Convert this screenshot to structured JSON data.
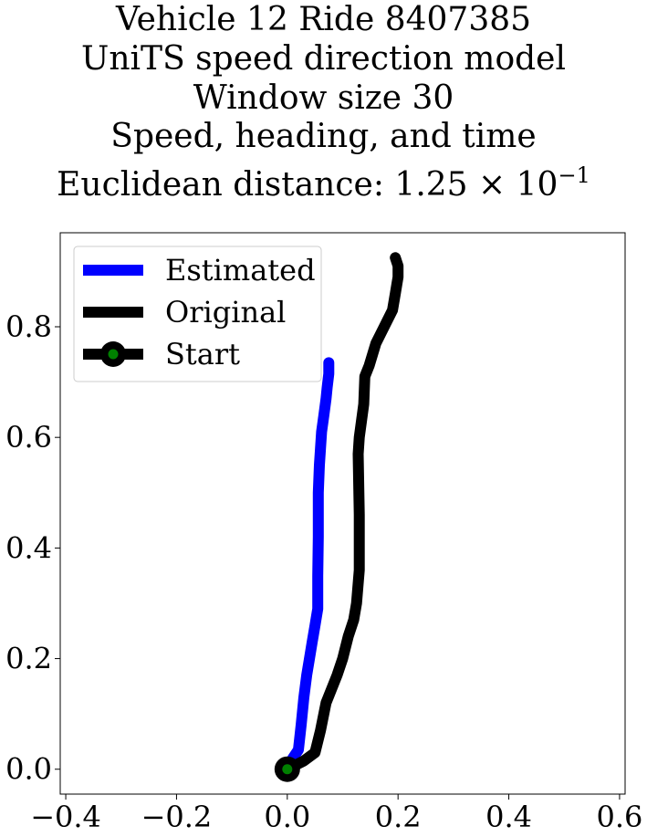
{
  "chart_data": {
    "type": "line",
    "title_lines": [
      "Vehicle 12 Ride 8407385",
      "UniTS speed direction model",
      "Window size 30",
      "Speed, heading, and time"
    ],
    "distance_label": "Euclidean distance: ",
    "distance_mantissa": "1.25",
    "distance_times": "×",
    "distance_base": "10",
    "distance_exponent": "−1",
    "xlabel": "",
    "ylabel": "",
    "xlim": [
      -0.41,
      0.61
    ],
    "ylim": [
      -0.045,
      0.97
    ],
    "x_ticks": [
      -0.4,
      -0.2,
      0.0,
      0.2,
      0.4,
      0.6
    ],
    "x_tick_labels": [
      "−0.4",
      "−0.2",
      "0.0",
      "0.2",
      "0.4",
      "0.6"
    ],
    "y_ticks": [
      0.0,
      0.2,
      0.4,
      0.6,
      0.8
    ],
    "y_tick_labels": [
      "0.0",
      "0.2",
      "0.4",
      "0.6",
      "0.8"
    ],
    "grid": false,
    "legend_position": "top-left",
    "series": [
      {
        "name": "Estimated",
        "color": "#0000ff",
        "x": [
          0.0,
          0.01,
          0.02,
          0.025,
          0.03,
          0.035,
          0.04,
          0.045,
          0.05,
          0.055,
          0.055,
          0.056,
          0.056,
          0.058,
          0.06,
          0.062,
          0.066,
          0.07,
          0.072,
          0.075,
          0.075
        ],
        "y": [
          0.0,
          0.02,
          0.035,
          0.08,
          0.13,
          0.17,
          0.2,
          0.23,
          0.26,
          0.29,
          0.35,
          0.42,
          0.5,
          0.55,
          0.58,
          0.61,
          0.64,
          0.67,
          0.69,
          0.715,
          0.735
        ]
      },
      {
        "name": "Original",
        "color": "#000000",
        "x": [
          0.0,
          0.03,
          0.05,
          0.06,
          0.07,
          0.09,
          0.1,
          0.11,
          0.12,
          0.125,
          0.13,
          0.13,
          0.128,
          0.13,
          0.138,
          0.14,
          0.148,
          0.16,
          0.175,
          0.19,
          0.195,
          0.2,
          0.2,
          0.195
        ],
        "y": [
          0.0,
          0.015,
          0.03,
          0.07,
          0.12,
          0.17,
          0.2,
          0.24,
          0.27,
          0.3,
          0.36,
          0.46,
          0.57,
          0.6,
          0.66,
          0.71,
          0.73,
          0.77,
          0.8,
          0.83,
          0.86,
          0.89,
          0.91,
          0.925
        ]
      },
      {
        "name": "Start",
        "color": "#000000",
        "marker_color": "#008000",
        "x": [
          0.0
        ],
        "y": [
          0.0
        ]
      }
    ]
  }
}
